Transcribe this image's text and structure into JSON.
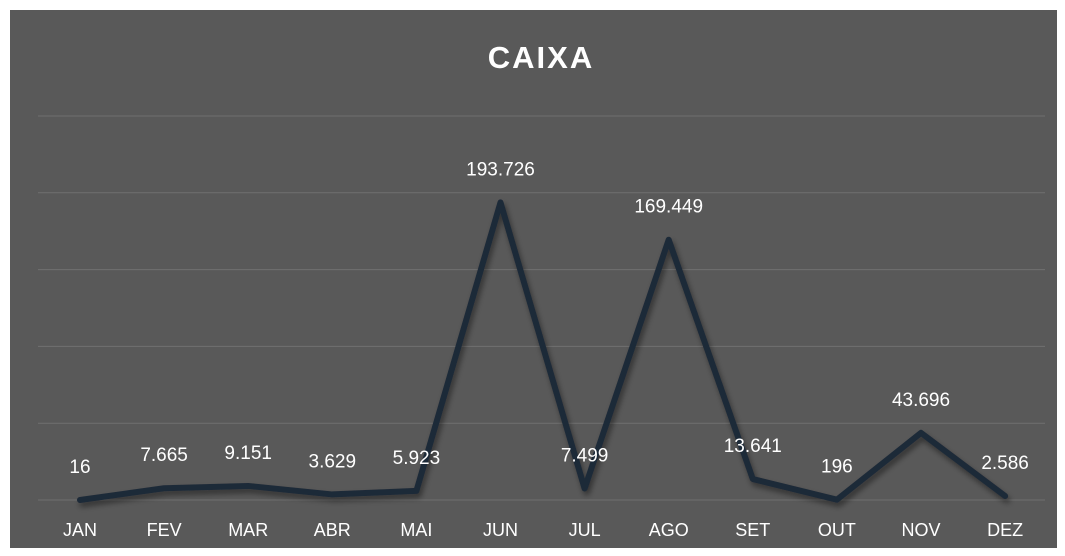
{
  "chart_data": {
    "type": "line",
    "title": "CAIXA",
    "categories": [
      "JAN",
      "FEV",
      "MAR",
      "ABR",
      "MAI",
      "JUN",
      "JUL",
      "AGO",
      "SET",
      "OUT",
      "NOV",
      "DEZ"
    ],
    "series": [
      {
        "name": "CAIXA",
        "color": "#1f2937",
        "values": [
          16,
          7665,
          9151,
          3629,
          5923,
          193726,
          7499,
          169449,
          13641,
          196,
          43696,
          2586
        ],
        "value_labels": [
          "16",
          "7.665",
          "9.151",
          "3.629",
          "5.923",
          "193.726",
          "7.499",
          "169.449",
          "13.641",
          "196",
          "43.696",
          "2.586"
        ]
      }
    ],
    "ylim": [
      0,
      250000
    ],
    "yticks": [
      0,
      50000,
      100000,
      150000,
      200000,
      250000
    ],
    "grid": true
  }
}
